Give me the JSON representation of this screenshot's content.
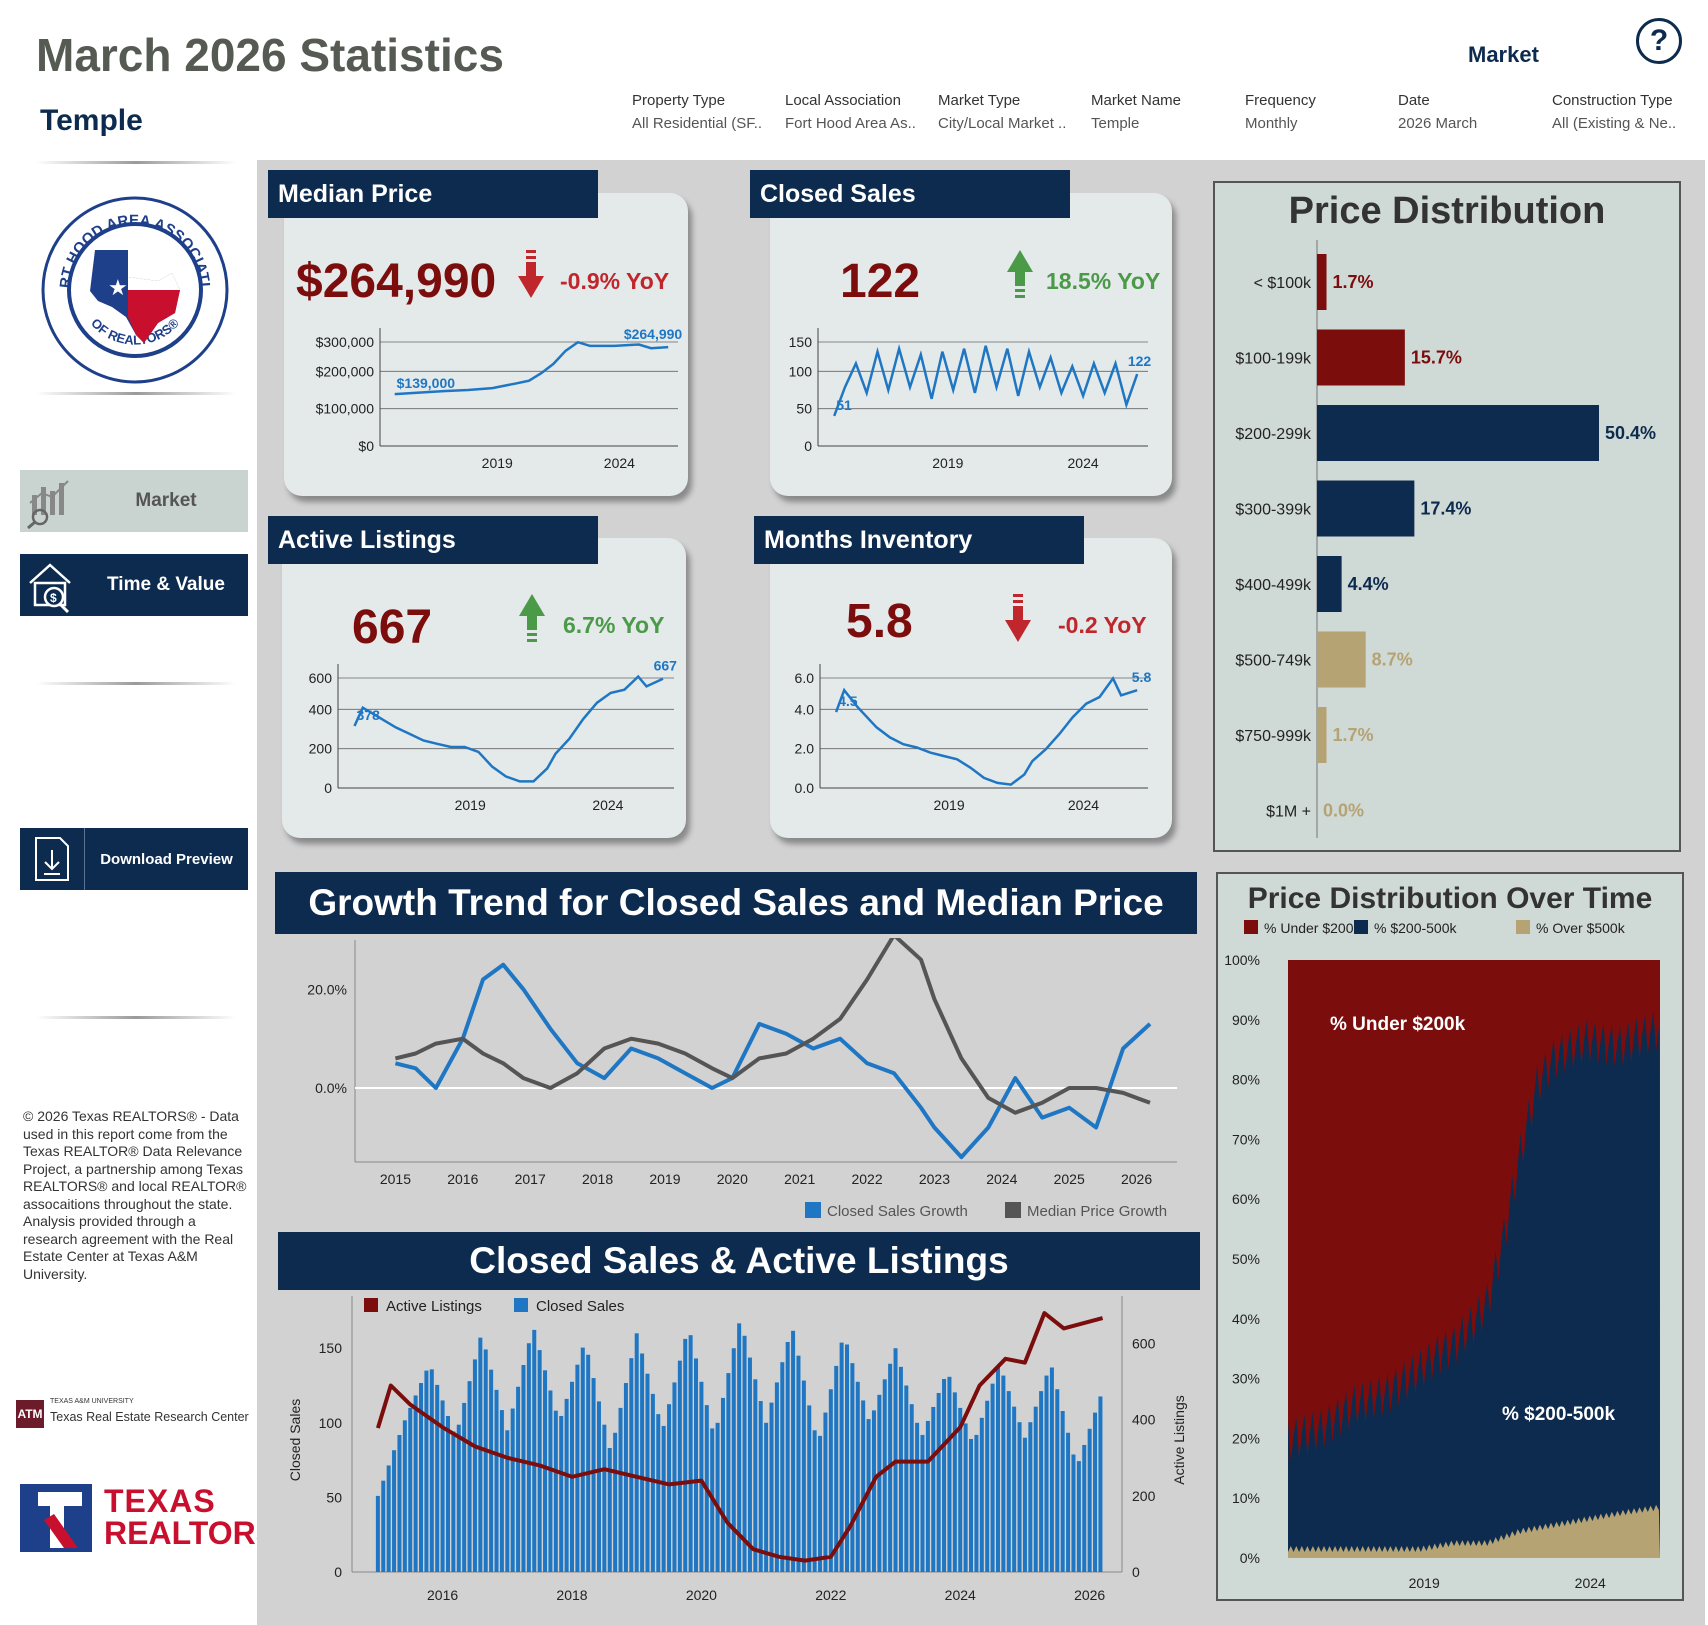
{
  "header": {
    "title": "March 2026 Statistics",
    "location": "Temple",
    "market_label": "Market",
    "help_icon": "?"
  },
  "filters": [
    {
      "label": "Property Type",
      "value": "All Residential (SF.."
    },
    {
      "label": "Local Association",
      "value": "Fort Hood Area As.."
    },
    {
      "label": "Market Type",
      "value": "City/Local Market .."
    },
    {
      "label": "Market Name",
      "value": "Temple"
    },
    {
      "label": "Frequency",
      "value": "Monthly"
    },
    {
      "label": "Date",
      "value": "2026 March"
    },
    {
      "label": "Construction Type",
      "value": "All (Existing & Ne.."
    }
  ],
  "sidebar": {
    "nav": [
      {
        "label": "Market",
        "icon": "market-chart-icon"
      },
      {
        "label": "Time & Value",
        "icon": "house-value-icon"
      }
    ],
    "download_label": "Download Preview",
    "copyright": "© 2026 Texas REALTORS® - Data used in this report come from the Texas REALTOR® Data Relevance Project, a partnership among Texas REALTORS® and local REALTOR® assocaitions throughout the state. Analysis provided through a research agreement with the Real Estate Center at Texas A&M University.",
    "logo_text": "FORT HOOD AREA ASSOCIATION OF REALTORS®",
    "tamu_small": "TEXAS A&M UNIVERSITY",
    "tamu_name": "Texas Real Estate Research Center",
    "tr_line1": "TEXAS",
    "tr_line2": "REALTORS®",
    "colors": {
      "navy": "#0d2b4e",
      "red": "#7b0d0d",
      "green": "#4a9a48",
      "blue": "#1f77c4",
      "gray": "#555555",
      "tan": "#b5a373"
    }
  },
  "kpis": {
    "median_price": {
      "title": "Median Price",
      "value": "$264,990",
      "yoy": "-0.9% YoY",
      "trend": "down"
    },
    "closed_sales": {
      "title": "Closed Sales",
      "value": "122",
      "yoy": "18.5% YoY",
      "trend": "up"
    },
    "active_listings": {
      "title": "Active Listings",
      "value": "667",
      "yoy": "6.7% YoY",
      "trend": "up"
    },
    "months_inventory": {
      "title": "Months Inventory",
      "value": "5.8",
      "yoy": "-0.2 YoY",
      "trend": "down"
    }
  },
  "chart_data": [
    {
      "id": "median_price_spark",
      "type": "line",
      "x_ticks": [
        "2019",
        "2024"
      ],
      "y_ticks": [
        "$300,000",
        "$200,000",
        "$100,000",
        "$0"
      ],
      "ylim": [
        0,
        300000
      ],
      "start_label": "$139,000",
      "end_label": "$264,990",
      "x": [
        2015.0,
        2016.0,
        2017.0,
        2018.0,
        2019.0,
        2020.0,
        2020.5,
        2021.0,
        2021.5,
        2022.0,
        2022.5,
        2023.0,
        2024.0,
        2025.0,
        2025.5,
        2026.2
      ],
      "values": [
        139000,
        143000,
        147000,
        150000,
        155000,
        168000,
        175000,
        195000,
        220000,
        255000,
        278000,
        268000,
        268000,
        272000,
        262000,
        264990
      ]
    },
    {
      "id": "closed_sales_spark",
      "type": "line",
      "x_ticks": [
        "2019",
        "2024"
      ],
      "y_ticks": [
        "150",
        "100",
        "50",
        "0"
      ],
      "ylim": [
        0,
        190
      ],
      "start_label": "51",
      "end_label": "122",
      "x": [
        2015.0,
        2015.4,
        2015.8,
        2016.2,
        2016.6,
        2017.0,
        2017.4,
        2017.8,
        2018.2,
        2018.6,
        2019.0,
        2019.4,
        2019.8,
        2020.2,
        2020.6,
        2021.0,
        2021.4,
        2021.8,
        2022.2,
        2022.6,
        2023.0,
        2023.4,
        2023.8,
        2024.2,
        2024.6,
        2025.0,
        2025.4,
        2025.8,
        2026.2
      ],
      "values": [
        51,
        100,
        140,
        90,
        160,
        95,
        165,
        100,
        155,
        80,
        160,
        95,
        165,
        90,
        170,
        100,
        165,
        85,
        160,
        100,
        150,
        90,
        135,
        85,
        140,
        90,
        140,
        70,
        122
      ]
    },
    {
      "id": "active_listings_spark",
      "type": "line",
      "x_ticks": [
        "2019",
        "2024"
      ],
      "y_ticks": [
        "600",
        "400",
        "200",
        "0"
      ],
      "ylim": [
        0,
        720
      ],
      "start_label": "378",
      "end_label": "667",
      "x": [
        2015.0,
        2015.3,
        2015.8,
        2016.5,
        2017.0,
        2017.5,
        2018.0,
        2018.5,
        2019.0,
        2019.5,
        2020.0,
        2020.5,
        2021.0,
        2021.5,
        2022.0,
        2022.3,
        2022.8,
        2023.3,
        2023.8,
        2024.3,
        2024.8,
        2025.3,
        2025.6,
        2026.2
      ],
      "values": [
        378,
        490,
        440,
        370,
        330,
        290,
        270,
        250,
        250,
        220,
        130,
        70,
        40,
        40,
        120,
        210,
        300,
        420,
        520,
        580,
        600,
        680,
        620,
        667
      ]
    },
    {
      "id": "months_inventory_spark",
      "type": "line",
      "x_ticks": [
        "2019",
        "2024"
      ],
      "y_ticks": [
        "6.0",
        "4.0",
        "2.0",
        "0.0"
      ],
      "ylim": [
        0,
        7
      ],
      "start_label": "4.5",
      "end_label": "5.8",
      "x": [
        2015.0,
        2015.3,
        2015.8,
        2016.5,
        2017.0,
        2017.5,
        2018.0,
        2018.5,
        2019.0,
        2019.5,
        2020.0,
        2020.5,
        2021.0,
        2021.5,
        2022.0,
        2022.3,
        2022.8,
        2023.3,
        2023.8,
        2024.3,
        2024.8,
        2025.3,
        2025.6,
        2026.2
      ],
      "values": [
        4.5,
        5.8,
        4.8,
        3.6,
        3.0,
        2.6,
        2.4,
        2.1,
        1.9,
        1.7,
        1.2,
        0.6,
        0.3,
        0.2,
        0.8,
        1.6,
        2.3,
        3.2,
        4.2,
        5.0,
        5.4,
        6.5,
        5.5,
        5.8
      ]
    },
    {
      "id": "price_distribution",
      "type": "bar",
      "title": "Price Distribution",
      "categories": [
        "< $100k",
        "$100-199k",
        "$200-299k",
        "$300-399k",
        "$400-499k",
        "$500-749k",
        "$750-999k",
        "$1M +"
      ],
      "values": [
        1.7,
        15.7,
        50.4,
        17.4,
        4.4,
        8.7,
        1.7,
        0.0
      ],
      "labels": [
        "1.7%",
        "15.7%",
        "50.4%",
        "17.4%",
        "4.4%",
        "8.7%",
        "1.7%",
        "0.0%"
      ],
      "colors": [
        "#7b0d0d",
        "#7b0d0d",
        "#0d2b4e",
        "#0d2b4e",
        "#0d2b4e",
        "#b5a373",
        "#b5a373",
        "#b5a373"
      ]
    },
    {
      "id": "growth_trend",
      "type": "line",
      "title": "Growth Trend for Closed Sales and Median Price",
      "x_ticks": [
        "2015",
        "2016",
        "2017",
        "2018",
        "2019",
        "2020",
        "2021",
        "2022",
        "2023",
        "2024",
        "2025",
        "2026"
      ],
      "y_ticks": [
        "20.0%",
        "0.0%"
      ],
      "ylim": [
        -15,
        30
      ],
      "series": [
        {
          "name": "Closed Sales Growth",
          "color": "#1f77c4",
          "x": [
            2015.0,
            2015.3,
            2015.6,
            2016.0,
            2016.3,
            2016.6,
            2016.9,
            2017.3,
            2017.7,
            2018.1,
            2018.5,
            2018.9,
            2019.3,
            2019.7,
            2020.0,
            2020.4,
            2020.8,
            2021.2,
            2021.6,
            2022.0,
            2022.4,
            2022.8,
            2023.0,
            2023.4,
            2023.8,
            2024.2,
            2024.6,
            2025.0,
            2025.4,
            2025.8,
            2026.2
          ],
          "values": [
            5,
            4,
            0,
            10,
            22,
            25,
            20,
            12,
            5,
            2,
            8,
            6,
            3,
            0,
            2,
            13,
            11,
            8,
            10,
            5,
            3,
            -4,
            -8,
            -14,
            -8,
            2,
            -6,
            -4,
            -8,
            8,
            13
          ]
        },
        {
          "name": "Median Price Growth",
          "color": "#555555",
          "x": [
            2015.0,
            2015.3,
            2015.6,
            2016.0,
            2016.3,
            2016.6,
            2016.9,
            2017.3,
            2017.7,
            2018.1,
            2018.5,
            2018.9,
            2019.3,
            2019.7,
            2020.0,
            2020.4,
            2020.8,
            2021.2,
            2021.6,
            2022.0,
            2022.4,
            2022.8,
            2023.0,
            2023.4,
            2023.8,
            2024.2,
            2024.6,
            2025.0,
            2025.4,
            2025.8,
            2026.2
          ],
          "values": [
            6,
            7,
            9,
            10,
            7,
            5,
            2,
            0,
            3,
            8,
            10,
            9,
            7,
            4,
            2,
            6,
            7,
            10,
            14,
            22,
            31,
            26,
            18,
            6,
            -2,
            -5,
            -3,
            0,
            0,
            -1,
            -3
          ]
        }
      ]
    },
    {
      "id": "closed_sales_active_listings",
      "type": "bar",
      "title": "Closed Sales & Active Listings",
      "x_ticks": [
        "2016",
        "2018",
        "2020",
        "2022",
        "2024",
        "2026"
      ],
      "ylabel": "Closed Sales",
      "y2label": "Active Listings",
      "y_ticks": [
        "150",
        "100",
        "50",
        "0"
      ],
      "y2_ticks": [
        "600",
        "400",
        "200",
        "0"
      ],
      "ylim": [
        0,
        185
      ],
      "y2lim": [
        0,
        725
      ],
      "series": [
        {
          "name": "Active Listings",
          "color": "#7b0d0d",
          "kind": "line",
          "x": [
            2015.0,
            2015.2,
            2015.5,
            2016.0,
            2016.5,
            2017.0,
            2017.5,
            2018.0,
            2018.5,
            2019.0,
            2019.5,
            2020.0,
            2020.4,
            2020.8,
            2021.2,
            2021.6,
            2022.0,
            2022.3,
            2022.7,
            2023.0,
            2023.5,
            2024.0,
            2024.3,
            2024.7,
            2025.0,
            2025.3,
            2025.6,
            2026.2
          ],
          "values": [
            378,
            490,
            440,
            380,
            330,
            300,
            280,
            250,
            270,
            250,
            230,
            240,
            130,
            60,
            40,
            30,
            40,
            120,
            250,
            290,
            290,
            380,
            490,
            560,
            550,
            680,
            640,
            667
          ]
        },
        {
          "name": "Closed Sales",
          "color": "#1f77c4",
          "kind": "bar",
          "x": [
            2015.0,
            2015.4,
            2015.8,
            2016.2,
            2016.6,
            2017.0,
            2017.4,
            2017.8,
            2018.2,
            2018.6,
            2019.0,
            2019.4,
            2019.8,
            2020.2,
            2020.6,
            2021.0,
            2021.4,
            2021.8,
            2022.2,
            2022.6,
            2023.0,
            2023.4,
            2023.8,
            2024.2,
            2024.6,
            2025.0,
            2025.4,
            2025.8,
            2026.2
          ],
          "values": [
            51,
            100,
            140,
            90,
            160,
            95,
            165,
            100,
            155,
            80,
            160,
            95,
            165,
            90,
            170,
            100,
            165,
            85,
            160,
            100,
            150,
            90,
            135,
            85,
            140,
            90,
            140,
            70,
            122
          ]
        }
      ]
    },
    {
      "id": "price_distribution_over_time",
      "type": "area",
      "title": "Price Distribution Over Time",
      "x_ticks": [
        "2019",
        "2024"
      ],
      "y_ticks": [
        "100%",
        "90%",
        "80%",
        "70%",
        "60%",
        "50%",
        "40%",
        "30%",
        "20%",
        "10%",
        "0%"
      ],
      "ylim": [
        0,
        100
      ],
      "annotations": [
        "% Under $200k",
        "% $200-500k"
      ],
      "series": [
        {
          "name": "% Under $200k",
          "color": "#7b0d0d"
        },
        {
          "name": "% $200-500k",
          "color": "#0d2b4e",
          "x": [
            2015.0,
            2016.0,
            2017.0,
            2018.0,
            2019.0,
            2019.5,
            2020.0,
            2020.5,
            2021.0,
            2021.5,
            2022.0,
            2022.5,
            2023.0,
            2024.0,
            2025.0,
            2026.2
          ],
          "values": [
            18,
            20,
            24,
            26,
            30,
            32,
            33,
            36,
            40,
            50,
            63,
            74,
            78,
            80,
            78,
            80
          ]
        },
        {
          "name": "% Over $500k",
          "color": "#b5a373",
          "x": [
            2015.0,
            2016.0,
            2017.0,
            2018.0,
            2019.0,
            2020.0,
            2021.0,
            2022.0,
            2023.0,
            2024.0,
            2025.0,
            2026.2
          ],
          "values": [
            1,
            1,
            1,
            1,
            1,
            2,
            2,
            4,
            5,
            6,
            7,
            8
          ]
        }
      ]
    }
  ]
}
